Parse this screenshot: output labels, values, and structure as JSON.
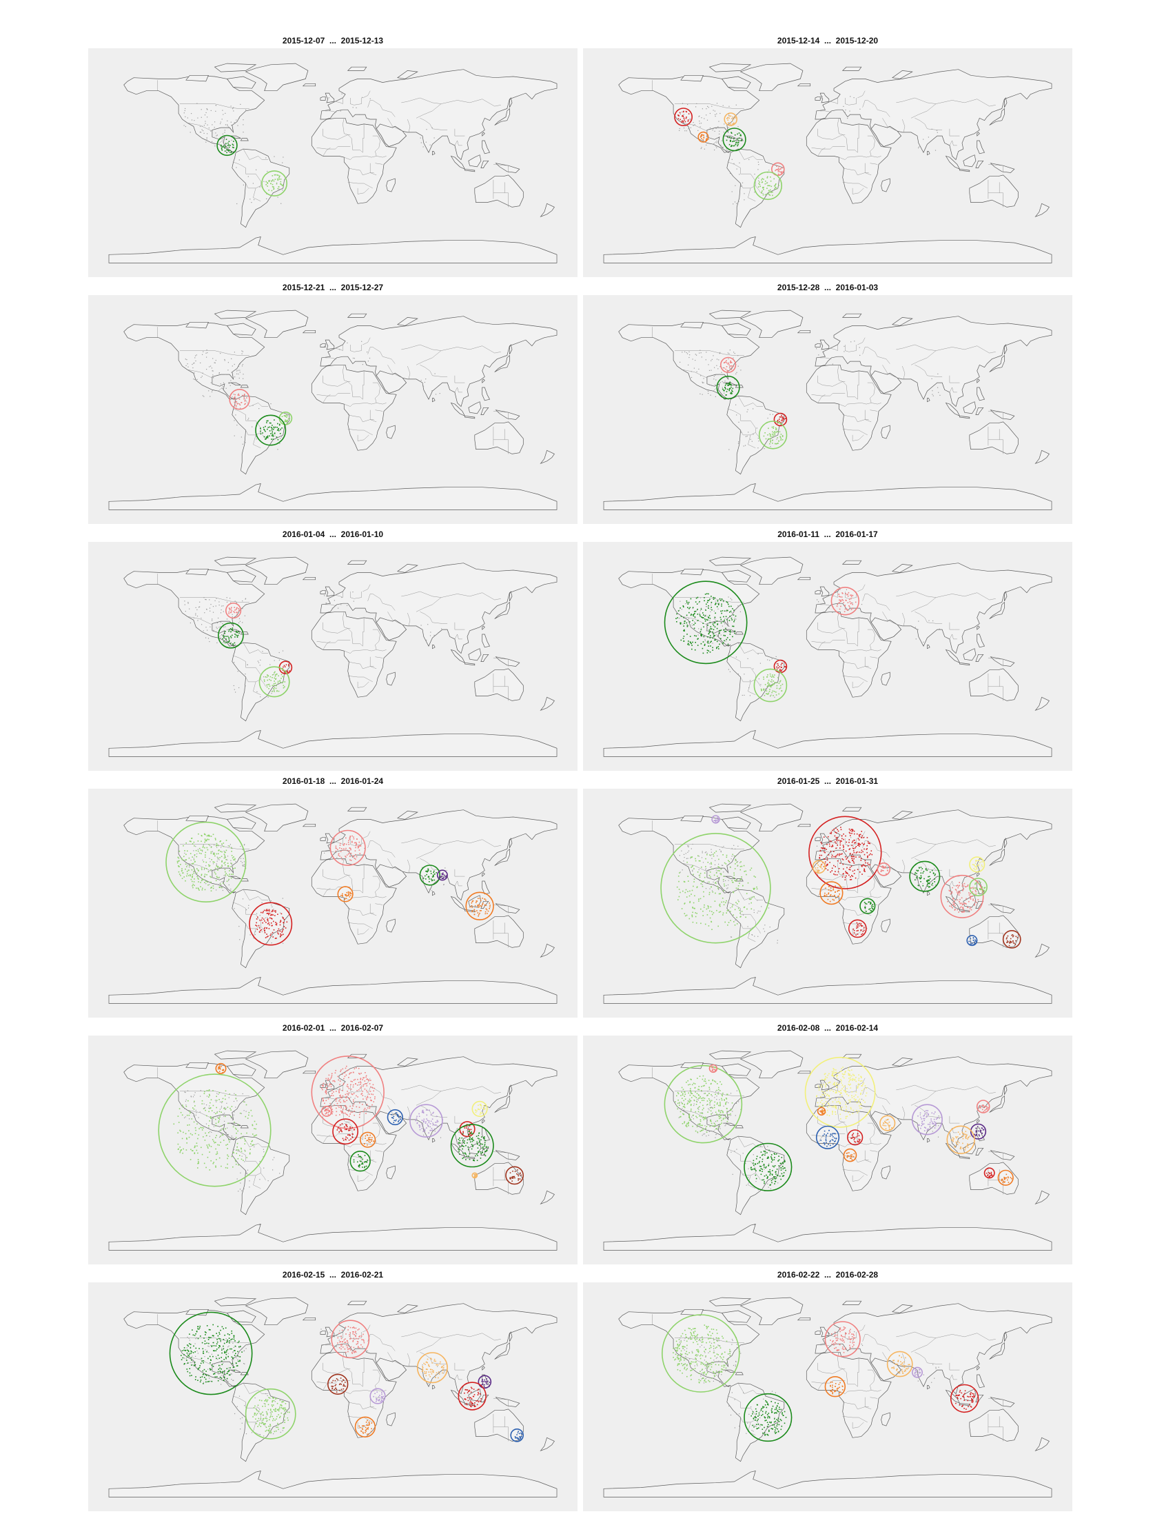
{
  "figure": {
    "panels": [
      {
        "label_start": "2015-12-07",
        "sep": "...",
        "label_end": "2015-12-13"
      },
      {
        "label_start": "2015-12-14",
        "sep": "...",
        "label_end": "2015-12-20"
      },
      {
        "label_start": "2015-12-21",
        "sep": "...",
        "label_end": "2015-12-27"
      },
      {
        "label_start": "2015-12-28",
        "sep": "...",
        "label_end": "2016-01-03"
      },
      {
        "label_start": "2016-01-04",
        "sep": "...",
        "label_end": "2016-01-10"
      },
      {
        "label_start": "2016-01-11",
        "sep": "...",
        "label_end": "2016-01-17"
      },
      {
        "label_start": "2016-01-18",
        "sep": "...",
        "label_end": "2016-01-24"
      },
      {
        "label_start": "2016-01-25",
        "sep": "...",
        "label_end": "2016-01-31"
      },
      {
        "label_start": "2016-02-01",
        "sep": "...",
        "label_end": "2016-02-07"
      },
      {
        "label_start": "2016-02-08",
        "sep": "...",
        "label_end": "2016-02-14"
      },
      {
        "label_start": "2016-02-15",
        "sep": "...",
        "label_end": "2016-02-21"
      },
      {
        "label_start": "2016-02-22",
        "sep": "...",
        "label_end": "2016-02-28"
      }
    ]
  },
  "colors": {
    "dark-green": "#1a8a1a",
    "light-green": "#8ed36a",
    "red": "#d42020",
    "pink": "#f08080",
    "orange": "#f07a22",
    "light-orange": "#f6b560",
    "purple": "#5b2a86",
    "lavender": "#b79ad6",
    "blue": "#2b5fb0",
    "yellow": "#f2f07a",
    "brown": "#a0331d"
  },
  "clusters": [
    [
      {
        "region": "Central America",
        "lon": -85,
        "lat": 14,
        "r": 8,
        "color": "dark-green"
      },
      {
        "region": "Brazil",
        "lon": -47,
        "lat": -18,
        "r": 10,
        "color": "light-green"
      }
    ],
    [
      {
        "region": "Western US",
        "lon": -116,
        "lat": 38,
        "r": 7,
        "color": "red"
      },
      {
        "region": "Eastern US",
        "lon": -78,
        "lat": 36,
        "r": 5,
        "color": "light-orange"
      },
      {
        "region": "Mexico",
        "lon": -100,
        "lat": 21,
        "r": 4,
        "color": "orange"
      },
      {
        "region": "Caribbean",
        "lon": -75,
        "lat": 19,
        "r": 9,
        "color": "dark-green"
      },
      {
        "region": "Brazil north-east",
        "lon": -40,
        "lat": -6,
        "r": 5,
        "color": "pink"
      },
      {
        "region": "Brazil",
        "lon": -48,
        "lat": -20,
        "r": 11,
        "color": "light-green"
      }
    ],
    [
      {
        "region": "Colombia",
        "lon": -75,
        "lat": 8,
        "r": 8,
        "color": "pink"
      },
      {
        "region": "Brazil north-east",
        "lon": -38,
        "lat": -8,
        "r": 5,
        "color": "light-green"
      },
      {
        "region": "Brazil",
        "lon": -50,
        "lat": -18,
        "r": 12,
        "color": "dark-green"
      }
    ],
    [
      {
        "region": "Eastern US",
        "lon": -80,
        "lat": 37,
        "r": 6,
        "color": "pink"
      },
      {
        "region": "Caribbean",
        "lon": -80,
        "lat": 18,
        "r": 9,
        "color": "dark-green"
      },
      {
        "region": "Brazil north-east",
        "lon": -38,
        "lat": -9,
        "r": 5,
        "color": "red"
      },
      {
        "region": "Brazil",
        "lon": -44,
        "lat": -22,
        "r": 11,
        "color": "light-green"
      }
    ],
    [
      {
        "region": "Eastern US",
        "lon": -80,
        "lat": 38,
        "r": 6,
        "color": "pink"
      },
      {
        "region": "Caribbean",
        "lon": -82,
        "lat": 17,
        "r": 10,
        "color": "dark-green"
      },
      {
        "region": "Brazil north-east",
        "lon": -38,
        "lat": -10,
        "r": 5,
        "color": "red"
      },
      {
        "region": "Brazil",
        "lon": -47,
        "lat": -22,
        "r": 12,
        "color": "light-green"
      }
    ],
    [
      {
        "region": "North America",
        "lon": -98,
        "lat": 28,
        "r": 33,
        "color": "dark-green"
      },
      {
        "region": "Europe",
        "lon": 14,
        "lat": 46,
        "r": 11,
        "color": "pink"
      },
      {
        "region": "Brazil north-east",
        "lon": -38,
        "lat": -9,
        "r": 5,
        "color": "red"
      },
      {
        "region": "Brazil",
        "lon": -46,
        "lat": -25,
        "r": 13,
        "color": "light-green"
      }
    ],
    [
      {
        "region": "North America",
        "lon": -102,
        "lat": 34,
        "r": 32,
        "color": "light-green"
      },
      {
        "region": "Europe",
        "lon": 12,
        "lat": 46,
        "r": 14,
        "color": "pink"
      },
      {
        "region": "West Africa",
        "lon": 10,
        "lat": 7,
        "r": 6,
        "color": "orange"
      },
      {
        "region": "India",
        "lon": 78,
        "lat": 23,
        "r": 8,
        "color": "dark-green"
      },
      {
        "region": "Bangladesh",
        "lon": 88,
        "lat": 23,
        "r": 4,
        "color": "purple"
      },
      {
        "region": "Indonesia",
        "lon": 118,
        "lat": -3,
        "r": 11,
        "color": "orange"
      },
      {
        "region": "Brazil",
        "lon": -50,
        "lat": -18,
        "r": 17,
        "color": "red"
      }
    ],
    [
      {
        "region": "Americas",
        "lon": -90,
        "lat": 12,
        "r": 44,
        "color": "light-green"
      },
      {
        "region": "Canada north",
        "lon": -90,
        "lat": 70,
        "r": 3,
        "color": "lavender"
      },
      {
        "region": "Europe",
        "lon": 14,
        "lat": 42,
        "r": 29,
        "color": "red"
      },
      {
        "region": "Morocco",
        "lon": -7,
        "lat": 30,
        "r": 5,
        "color": "light-orange"
      },
      {
        "region": "West Africa",
        "lon": 3,
        "lat": 8,
        "r": 9,
        "color": "orange"
      },
      {
        "region": "Middle East",
        "lon": 45,
        "lat": 28,
        "r": 5,
        "color": "pink"
      },
      {
        "region": "India",
        "lon": 78,
        "lat": 22,
        "r": 12,
        "color": "dark-green"
      },
      {
        "region": "China east",
        "lon": 120,
        "lat": 32,
        "r": 6,
        "color": "yellow"
      },
      {
        "region": "East Africa",
        "lon": 32,
        "lat": -3,
        "r": 6,
        "color": "dark-green"
      },
      {
        "region": "Southern Africa",
        "lon": 24,
        "lat": -22,
        "r": 7,
        "color": "red"
      },
      {
        "region": "South-East Asia",
        "lon": 108,
        "lat": 5,
        "r": 17,
        "color": "pink"
      },
      {
        "region": "Philippines",
        "lon": 121,
        "lat": 13,
        "r": 7,
        "color": "light-green"
      },
      {
        "region": "Australia west",
        "lon": 116,
        "lat": -32,
        "r": 4,
        "color": "blue"
      },
      {
        "region": "Australia east",
        "lon": 148,
        "lat": -31,
        "r": 7,
        "color": "brown"
      }
    ],
    [
      {
        "region": "Americas",
        "lon": -95,
        "lat": 16,
        "r": 45,
        "color": "light-green"
      },
      {
        "region": "Canada north",
        "lon": -90,
        "lat": 68,
        "r": 4,
        "color": "orange"
      },
      {
        "region": "Europe",
        "lon": 12,
        "lat": 48,
        "r": 29,
        "color": "pink"
      },
      {
        "region": "Morocco",
        "lon": -5,
        "lat": 32,
        "r": 4,
        "color": "pink"
      },
      {
        "region": "Sahel",
        "lon": 10,
        "lat": 15,
        "r": 10,
        "color": "red"
      },
      {
        "region": "Ethiopia",
        "lon": 28,
        "lat": 8,
        "r": 6,
        "color": "orange"
      },
      {
        "region": "Gulf",
        "lon": 50,
        "lat": 27,
        "r": 6,
        "color": "blue"
      },
      {
        "region": "India",
        "lon": 75,
        "lat": 24,
        "r": 13,
        "color": "lavender"
      },
      {
        "region": "China east",
        "lon": 118,
        "lat": 34,
        "r": 6,
        "color": "yellow"
      },
      {
        "region": "Vietnam",
        "lon": 108,
        "lat": 17,
        "r": 6,
        "color": "red"
      },
      {
        "region": "Indonesia",
        "lon": 112,
        "lat": 3,
        "r": 17,
        "color": "dark-green"
      },
      {
        "region": "Central Africa",
        "lon": 22,
        "lat": -10,
        "r": 8,
        "color": "dark-green"
      },
      {
        "region": "Australia west",
        "lon": 114,
        "lat": -22,
        "r": 2,
        "color": "light-orange"
      },
      {
        "region": "Australia east",
        "lon": 146,
        "lat": -22,
        "r": 7,
        "color": "brown"
      }
    ],
    [
      {
        "region": "North America",
        "lon": -100,
        "lat": 38,
        "r": 31,
        "color": "light-green"
      },
      {
        "region": "Canada north",
        "lon": -92,
        "lat": 68,
        "r": 3,
        "color": "pink"
      },
      {
        "region": "Europe",
        "lon": 10,
        "lat": 48,
        "r": 28,
        "color": "yellow"
      },
      {
        "region": "Morocco",
        "lon": -5,
        "lat": 32,
        "r": 3,
        "color": "orange"
      },
      {
        "region": "West Africa",
        "lon": 0,
        "lat": 10,
        "r": 9,
        "color": "blue"
      },
      {
        "region": "Sudan",
        "lon": 22,
        "lat": 10,
        "r": 6,
        "color": "red"
      },
      {
        "region": "East Africa",
        "lon": 18,
        "lat": -5,
        "r": 5,
        "color": "orange"
      },
      {
        "region": "Arabia",
        "lon": 48,
        "lat": 22,
        "r": 6,
        "color": "light-orange"
      },
      {
        "region": "India",
        "lon": 80,
        "lat": 25,
        "r": 12,
        "color": "lavender"
      },
      {
        "region": "Korea Japan",
        "lon": 125,
        "lat": 36,
        "r": 5,
        "color": "pink"
      },
      {
        "region": "Philippines",
        "lon": 121,
        "lat": 15,
        "r": 6,
        "color": "purple"
      },
      {
        "region": "South-East Asia",
        "lon": 107,
        "lat": 8,
        "r": 11,
        "color": "light-orange"
      },
      {
        "region": "Australia",
        "lon": 143,
        "lat": -24,
        "r": 6,
        "color": "orange"
      },
      {
        "region": "Australia south",
        "lon": 130,
        "lat": -20,
        "r": 4,
        "color": "red"
      },
      {
        "region": "Brazil",
        "lon": -48,
        "lat": -15,
        "r": 19,
        "color": "dark-green"
      }
    ],
    [
      {
        "region": "North America",
        "lon": -98,
        "lat": 36,
        "r": 33,
        "color": "dark-green"
      },
      {
        "region": "Brazil",
        "lon": -50,
        "lat": -15,
        "r": 20,
        "color": "light-green"
      },
      {
        "region": "Europe",
        "lon": 14,
        "lat": 48,
        "r": 15,
        "color": "pink"
      },
      {
        "region": "West Africa",
        "lon": 4,
        "lat": 10,
        "r": 8,
        "color": "brown"
      },
      {
        "region": "East Africa",
        "lon": 36,
        "lat": 0,
        "r": 6,
        "color": "lavender"
      },
      {
        "region": "India",
        "lon": 80,
        "lat": 24,
        "r": 12,
        "color": "light-orange"
      },
      {
        "region": "Philippines",
        "lon": 122,
        "lat": 12,
        "r": 5,
        "color": "purple"
      },
      {
        "region": "Indonesia",
        "lon": 112,
        "lat": 0,
        "r": 11,
        "color": "red"
      },
      {
        "region": "South Africa",
        "lon": 26,
        "lat": -26,
        "r": 8,
        "color": "orange"
      },
      {
        "region": "Australia east",
        "lon": 148,
        "lat": -33,
        "r": 5,
        "color": "blue"
      }
    ],
    [
      {
        "region": "North America",
        "lon": -102,
        "lat": 36,
        "r": 31,
        "color": "light-green"
      },
      {
        "region": "Brazil",
        "lon": -48,
        "lat": -18,
        "r": 19,
        "color": "dark-green"
      },
      {
        "region": "Europe",
        "lon": 12,
        "lat": 48,
        "r": 14,
        "color": "pink"
      },
      {
        "region": "West Africa",
        "lon": 6,
        "lat": 8,
        "r": 8,
        "color": "orange"
      },
      {
        "region": "Middle East",
        "lon": 58,
        "lat": 27,
        "r": 10,
        "color": "light-orange"
      },
      {
        "region": "India south",
        "lon": 72,
        "lat": 20,
        "r": 4,
        "color": "lavender"
      },
      {
        "region": "Indonesia",
        "lon": 110,
        "lat": -2,
        "r": 11,
        "color": "red"
      }
    ]
  ]
}
